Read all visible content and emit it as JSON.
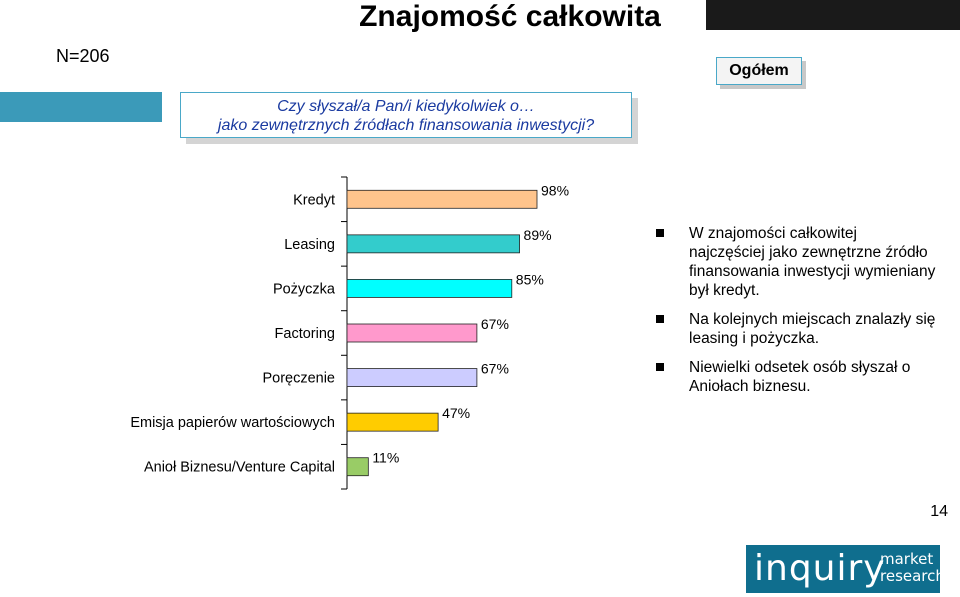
{
  "header": {
    "title": "Znajomość całkowita",
    "sample": "N=206",
    "segment_label": "Ogółem"
  },
  "question": {
    "line1": "Czy słyszał/a Pan/i kiedykolwiek o…",
    "line2": "jako zewnętrznych źródłach finansowania inwestycji?"
  },
  "chart_data": {
    "type": "bar",
    "orientation": "horizontal",
    "categories": [
      "Kredyt",
      "Leasing",
      "Pożyczka",
      "Factoring",
      "Poręczenie",
      "Emisja papierów wartościowych",
      "Anioł Biznesu/Venture Capital"
    ],
    "values": [
      98,
      89,
      85,
      67,
      67,
      47,
      11
    ],
    "value_labels": [
      "98%",
      "89%",
      "85%",
      "67%",
      "67%",
      "47%",
      "11%"
    ],
    "colors": [
      "#ffc48c",
      "#33cccc",
      "#00ffff",
      "#ff99cc",
      "#ccccff",
      "#ffcc00",
      "#99cc66"
    ],
    "xlim": [
      0,
      100
    ]
  },
  "bullets": [
    "W znajomości całkowitej najczęściej jako zewnętrzne źródło finansowania inwestycji wymieniany był kredyt.",
    "Na kolejnych miejscach znalazły się leasing i pożyczka.",
    "Niewielki odsetek osób słyszał o Aniołach biznesu."
  ],
  "footer": {
    "page_number": "14",
    "logo_main": "inquiry",
    "logo_sub_1": "market",
    "logo_sub_2": "research"
  }
}
